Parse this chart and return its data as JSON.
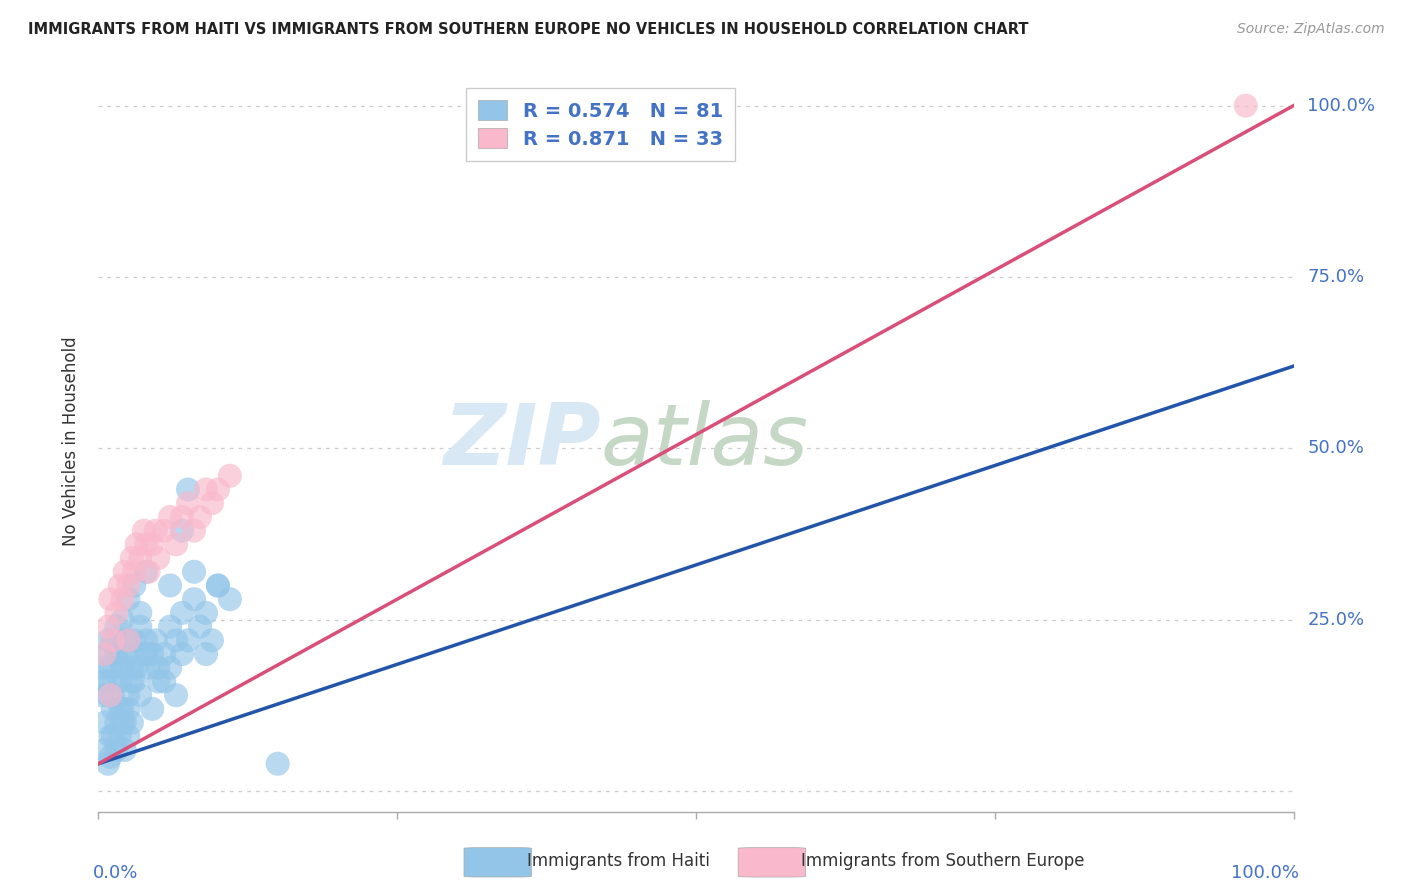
{
  "title": "IMMIGRANTS FROM HAITI VS IMMIGRANTS FROM SOUTHERN EUROPE NO VEHICLES IN HOUSEHOLD CORRELATION CHART",
  "source": "Source: ZipAtlas.com",
  "ylabel": "No Vehicles in Household",
  "xlim": [
    0,
    1
  ],
  "ylim": [
    -0.03,
    1.05
  ],
  "ytick_labels": [
    "0.0%",
    "25.0%",
    "50.0%",
    "75.0%",
    "100.0%"
  ],
  "ytick_values": [
    0,
    0.25,
    0.5,
    0.75,
    1.0
  ],
  "xtick_values": [
    0,
    0.25,
    0.5,
    0.75,
    1.0
  ],
  "haiti_color": "#92c5e8",
  "southern_europe_color": "#f9b8cb",
  "haiti_line_color": "#2255aa",
  "southern_europe_line_color": "#d94f7a",
  "haiti_R": 0.574,
  "haiti_N": 81,
  "southern_europe_R": 0.871,
  "southern_europe_N": 33,
  "watermark_zip": "ZIP",
  "watermark_atlas": "atlas",
  "legend_label_haiti": "Immigrants from Haiti",
  "legend_label_southern": "Immigrants from Southern Europe",
  "background_color": "#ffffff",
  "label_color": "#4472c4",
  "haiti_scatter": [
    [
      0.005,
      0.16
    ],
    [
      0.008,
      0.22
    ],
    [
      0.01,
      0.18
    ],
    [
      0.012,
      0.14
    ],
    [
      0.015,
      0.2
    ],
    [
      0.018,
      0.12
    ],
    [
      0.02,
      0.25
    ],
    [
      0.022,
      0.18
    ],
    [
      0.025,
      0.22
    ],
    [
      0.028,
      0.16
    ],
    [
      0.005,
      0.1
    ],
    [
      0.008,
      0.14
    ],
    [
      0.01,
      0.08
    ],
    [
      0.012,
      0.12
    ],
    [
      0.015,
      0.1
    ],
    [
      0.018,
      0.16
    ],
    [
      0.02,
      0.12
    ],
    [
      0.022,
      0.1
    ],
    [
      0.025,
      0.14
    ],
    [
      0.028,
      0.18
    ],
    [
      0.005,
      0.06
    ],
    [
      0.008,
      0.04
    ],
    [
      0.01,
      0.05
    ],
    [
      0.012,
      0.08
    ],
    [
      0.015,
      0.06
    ],
    [
      0.018,
      0.08
    ],
    [
      0.02,
      0.1
    ],
    [
      0.022,
      0.06
    ],
    [
      0.025,
      0.08
    ],
    [
      0.028,
      0.1
    ],
    [
      0.003,
      0.14
    ],
    [
      0.005,
      0.18
    ],
    [
      0.008,
      0.2
    ],
    [
      0.01,
      0.16
    ],
    [
      0.012,
      0.22
    ],
    [
      0.015,
      0.24
    ],
    [
      0.018,
      0.2
    ],
    [
      0.02,
      0.18
    ],
    [
      0.022,
      0.22
    ],
    [
      0.025,
      0.2
    ],
    [
      0.03,
      0.22
    ],
    [
      0.032,
      0.18
    ],
    [
      0.035,
      0.24
    ],
    [
      0.038,
      0.2
    ],
    [
      0.04,
      0.22
    ],
    [
      0.042,
      0.18
    ],
    [
      0.045,
      0.2
    ],
    [
      0.048,
      0.22
    ],
    [
      0.05,
      0.18
    ],
    [
      0.055,
      0.2
    ],
    [
      0.06,
      0.24
    ],
    [
      0.065,
      0.22
    ],
    [
      0.07,
      0.26
    ],
    [
      0.075,
      0.22
    ],
    [
      0.08,
      0.28
    ],
    [
      0.085,
      0.24
    ],
    [
      0.09,
      0.26
    ],
    [
      0.095,
      0.22
    ],
    [
      0.1,
      0.3
    ],
    [
      0.11,
      0.28
    ],
    [
      0.03,
      0.16
    ],
    [
      0.04,
      0.2
    ],
    [
      0.05,
      0.16
    ],
    [
      0.06,
      0.18
    ],
    [
      0.07,
      0.2
    ],
    [
      0.025,
      0.12
    ],
    [
      0.035,
      0.14
    ],
    [
      0.045,
      0.12
    ],
    [
      0.055,
      0.16
    ],
    [
      0.065,
      0.14
    ],
    [
      0.07,
      0.38
    ],
    [
      0.075,
      0.44
    ],
    [
      0.025,
      0.28
    ],
    [
      0.03,
      0.3
    ],
    [
      0.035,
      0.26
    ],
    [
      0.04,
      0.32
    ],
    [
      0.06,
      0.3
    ],
    [
      0.08,
      0.32
    ],
    [
      0.1,
      0.3
    ],
    [
      0.09,
      0.2
    ],
    [
      0.15,
      0.04
    ]
  ],
  "southern_europe_scatter": [
    [
      0.005,
      0.2
    ],
    [
      0.008,
      0.24
    ],
    [
      0.01,
      0.28
    ],
    [
      0.012,
      0.22
    ],
    [
      0.015,
      0.26
    ],
    [
      0.018,
      0.3
    ],
    [
      0.02,
      0.28
    ],
    [
      0.022,
      0.32
    ],
    [
      0.025,
      0.3
    ],
    [
      0.028,
      0.34
    ],
    [
      0.03,
      0.32
    ],
    [
      0.032,
      0.36
    ],
    [
      0.035,
      0.34
    ],
    [
      0.038,
      0.38
    ],
    [
      0.04,
      0.36
    ],
    [
      0.042,
      0.32
    ],
    [
      0.045,
      0.36
    ],
    [
      0.048,
      0.38
    ],
    [
      0.05,
      0.34
    ],
    [
      0.055,
      0.38
    ],
    [
      0.06,
      0.4
    ],
    [
      0.065,
      0.36
    ],
    [
      0.07,
      0.4
    ],
    [
      0.075,
      0.42
    ],
    [
      0.08,
      0.38
    ],
    [
      0.085,
      0.4
    ],
    [
      0.09,
      0.44
    ],
    [
      0.095,
      0.42
    ],
    [
      0.1,
      0.44
    ],
    [
      0.11,
      0.46
    ],
    [
      0.01,
      0.14
    ],
    [
      0.025,
      0.22
    ],
    [
      0.96,
      1.0
    ]
  ],
  "haiti_line_x": [
    0.0,
    1.0
  ],
  "haiti_line_y": [
    0.04,
    0.62
  ],
  "southern_line_x": [
    0.0,
    1.0
  ],
  "southern_line_y": [
    0.04,
    1.0
  ]
}
